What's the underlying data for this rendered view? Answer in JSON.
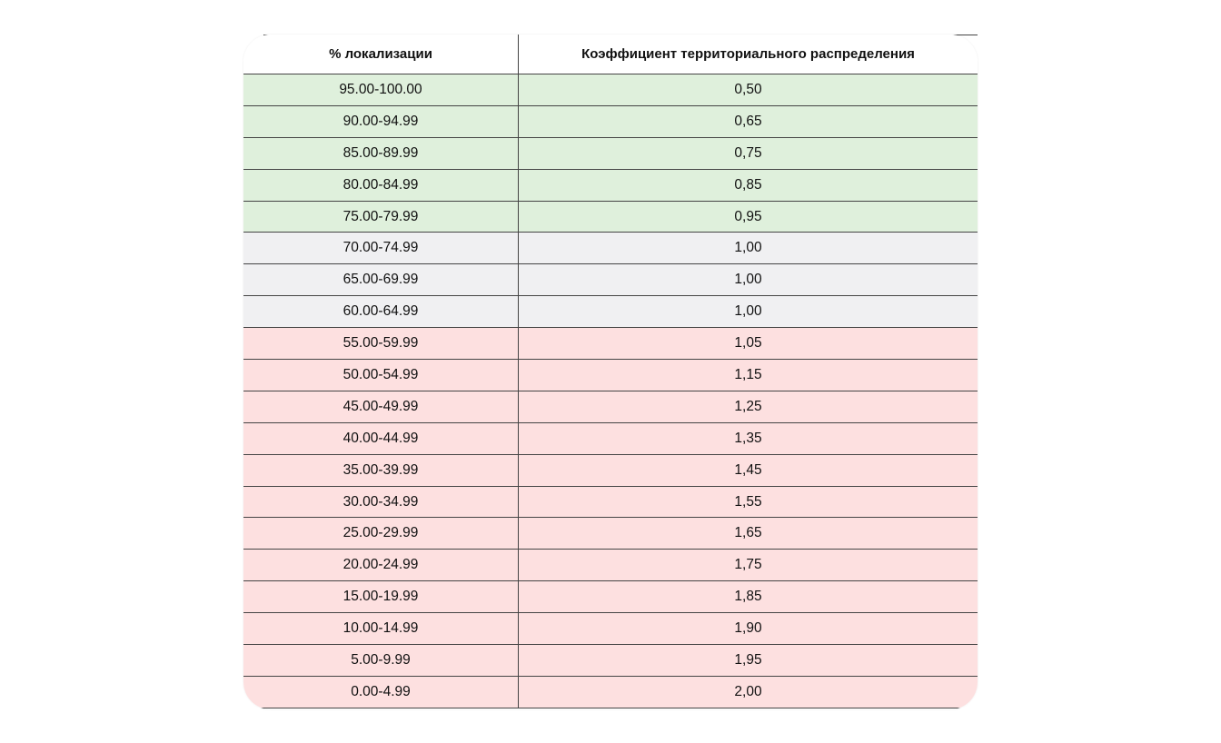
{
  "table": {
    "headers": [
      "% локализации",
      "Коэффициент территориального распределения"
    ],
    "colors": {
      "green": "#dff0dc",
      "grey": "#f0f0f2",
      "red": "#fde0e0"
    },
    "rows": [
      {
        "range": "95.00-100.00",
        "coef": "0,50",
        "group": "green"
      },
      {
        "range": "90.00-94.99",
        "coef": "0,65",
        "group": "green"
      },
      {
        "range": "85.00-89.99",
        "coef": "0,75",
        "group": "green"
      },
      {
        "range": "80.00-84.99",
        "coef": "0,85",
        "group": "green"
      },
      {
        "range": "75.00-79.99",
        "coef": "0,95",
        "group": "green"
      },
      {
        "range": "70.00-74.99",
        "coef": "1,00",
        "group": "grey"
      },
      {
        "range": "65.00-69.99",
        "coef": "1,00",
        "group": "grey"
      },
      {
        "range": "60.00-64.99",
        "coef": "1,00",
        "group": "grey"
      },
      {
        "range": "55.00-59.99",
        "coef": "1,05",
        "group": "red"
      },
      {
        "range": "50.00-54.99",
        "coef": "1,15",
        "group": "red"
      },
      {
        "range": "45.00-49.99",
        "coef": "1,25",
        "group": "red"
      },
      {
        "range": "40.00-44.99",
        "coef": "1,35",
        "group": "red"
      },
      {
        "range": "35.00-39.99",
        "coef": "1,45",
        "group": "red"
      },
      {
        "range": "30.00-34.99",
        "coef": "1,55",
        "group": "red"
      },
      {
        "range": "25.00-29.99",
        "coef": "1,65",
        "group": "red"
      },
      {
        "range": "20.00-24.99",
        "coef": "1,75",
        "group": "red"
      },
      {
        "range": "15.00-19.99",
        "coef": "1,85",
        "group": "red"
      },
      {
        "range": "10.00-14.99",
        "coef": "1,90",
        "group": "red"
      },
      {
        "range": "5.00-9.99",
        "coef": "1,95",
        "group": "red"
      },
      {
        "range": "0.00-4.99",
        "coef": "2,00",
        "group": "red"
      }
    ]
  }
}
